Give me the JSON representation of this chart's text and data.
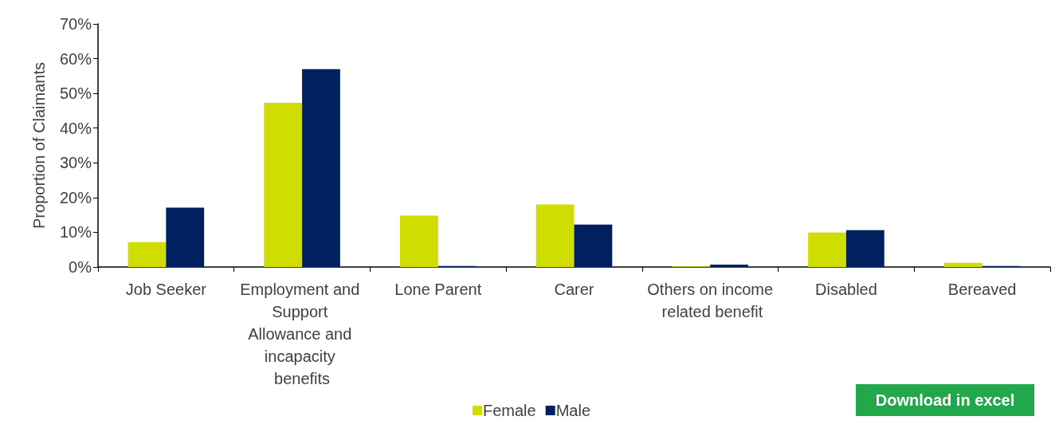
{
  "chart_data": {
    "type": "bar",
    "ylabel": "Proportion of Claimants",
    "categories": [
      "Job Seeker",
      "Employment and Support Allowance and incapacity benefits",
      "Lone Parent",
      "Carer",
      "Others on income related benefit",
      "Disabled",
      "Bereaved"
    ],
    "series": [
      {
        "name": "Female",
        "color": "#d0dd00",
        "values": [
          7.2,
          47.3,
          14.8,
          18.0,
          0.2,
          9.9,
          1.2
        ]
      },
      {
        "name": "Male",
        "color": "#002060",
        "values": [
          17.1,
          57.0,
          0.3,
          12.2,
          0.7,
          10.6,
          0.3
        ]
      }
    ],
    "ylim": [
      0,
      70
    ],
    "yticks": [
      {
        "value": 0,
        "label": "0%"
      },
      {
        "value": 10,
        "label": "10%"
      },
      {
        "value": 20,
        "label": "20%"
      },
      {
        "value": 30,
        "label": "30%"
      },
      {
        "value": 40,
        "label": "40%"
      },
      {
        "value": 50,
        "label": "50%"
      },
      {
        "value": 60,
        "label": "60%"
      },
      {
        "value": 70,
        "label": "70%"
      }
    ],
    "grid": false,
    "legend": "bottom",
    "annotations": [
      "Download in excel"
    ]
  }
}
